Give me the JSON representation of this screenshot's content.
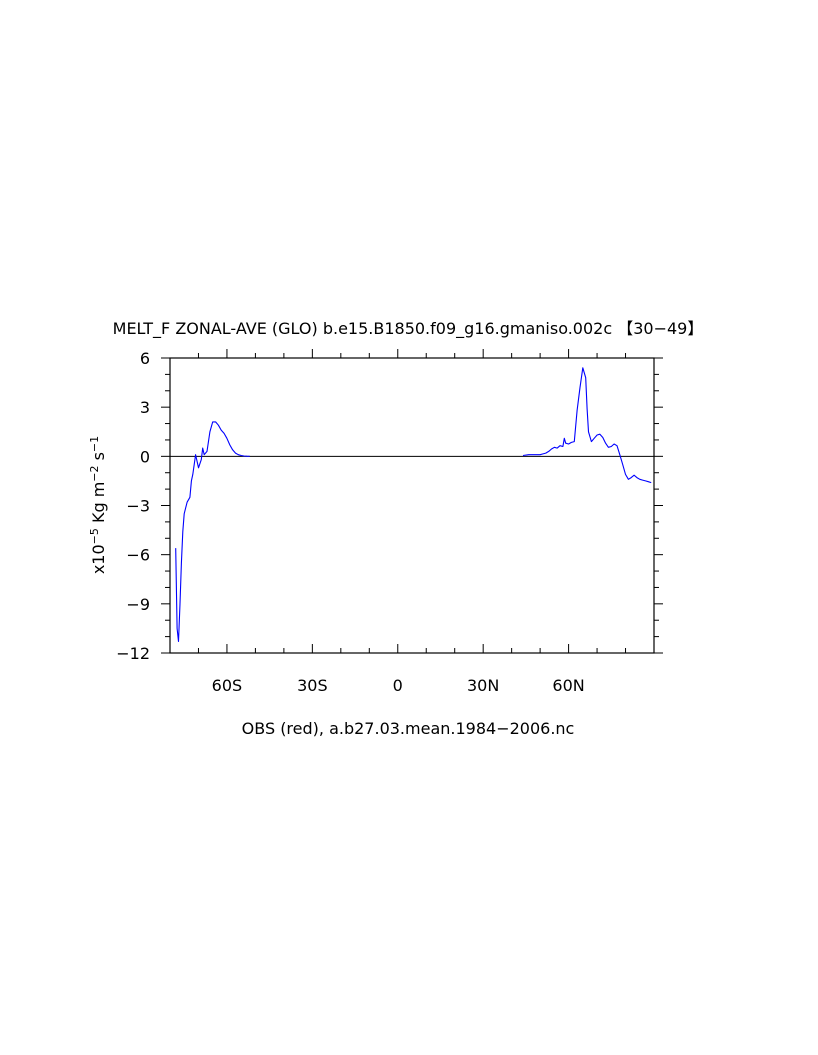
{
  "chart_data": {
    "type": "line",
    "title": "MELT_F ZONAL-AVE (GLO) b.e15.B1850.f09_g16.gmaniso.002c 【30−49】",
    "xlabel": "OBS (red), a.b27.03.mean.1984−2006.nc",
    "ylabel": {
      "prefix": "x10",
      "exponent": "−5",
      "unit": " Kg m",
      "unit_exp": "−2",
      "unit2": " s",
      "unit2_exp": "−1"
    },
    "xlim": [
      -80,
      90
    ],
    "ylim": [
      -12,
      6
    ],
    "xticks": [
      {
        "value": -60,
        "label": "60S"
      },
      {
        "value": -30,
        "label": "30S"
      },
      {
        "value": 0,
        "label": "0"
      },
      {
        "value": 30,
        "label": "30N"
      },
      {
        "value": 60,
        "label": "60N"
      }
    ],
    "yticks": [
      {
        "value": 6,
        "label": "6"
      },
      {
        "value": 3,
        "label": "3"
      },
      {
        "value": 0,
        "label": "0"
      },
      {
        "value": -3,
        "label": "−3"
      },
      {
        "value": -6,
        "label": "−6"
      },
      {
        "value": -9,
        "label": "−9"
      },
      {
        "value": -12,
        "label": "−12"
      }
    ],
    "zero_line": true,
    "series": [
      {
        "color": "#0000ff",
        "segments": [
          {
            "x": [
              -78,
              -77.5,
              -77,
              -76.5,
              -76,
              -75.5,
              -75,
              -74,
              -73,
              -72.5,
              -72,
              -71,
              -70,
              -69,
              -68.5,
              -68,
              -67,
              -66,
              -65,
              -64,
              -63,
              -62,
              -61,
              -60,
              -59,
              -58,
              -57,
              -56,
              -55,
              -54,
              -53,
              -52
            ],
            "y": [
              -5.6,
              -10.5,
              -11.3,
              -9.0,
              -6.5,
              -4.6,
              -3.5,
              -2.8,
              -2.5,
              -1.5,
              -1.1,
              0.1,
              -0.7,
              -0.2,
              0.5,
              0.1,
              0.3,
              1.5,
              2.1,
              2.1,
              1.9,
              1.6,
              1.4,
              1.1,
              0.7,
              0.4,
              0.2,
              0.1,
              0.05,
              0.02,
              0.01,
              0.0
            ]
          },
          {
            "x": [
              44,
              46,
              48,
              50,
              51,
              52,
              53,
              54,
              55,
              56,
              57,
              58,
              58.5,
              59,
              60,
              61,
              62,
              63,
              64,
              65,
              66,
              66.5,
              67,
              68,
              69,
              70,
              71,
              72,
              73,
              74,
              75,
              76,
              77,
              78,
              79,
              80,
              81,
              82,
              83,
              84,
              85,
              86,
              87,
              88,
              89
            ],
            "y": [
              0.05,
              0.1,
              0.1,
              0.1,
              0.15,
              0.2,
              0.3,
              0.45,
              0.55,
              0.5,
              0.65,
              0.6,
              1.1,
              0.8,
              0.75,
              0.85,
              0.9,
              2.8,
              4.2,
              5.4,
              4.8,
              2.9,
              1.5,
              0.9,
              1.1,
              1.3,
              1.35,
              1.15,
              0.8,
              0.55,
              0.6,
              0.75,
              0.65,
              0.1,
              -0.5,
              -1.1,
              -1.4,
              -1.3,
              -1.15,
              -1.3,
              -1.4,
              -1.45,
              -1.5,
              -1.55,
              -1.6
            ]
          }
        ]
      }
    ]
  }
}
